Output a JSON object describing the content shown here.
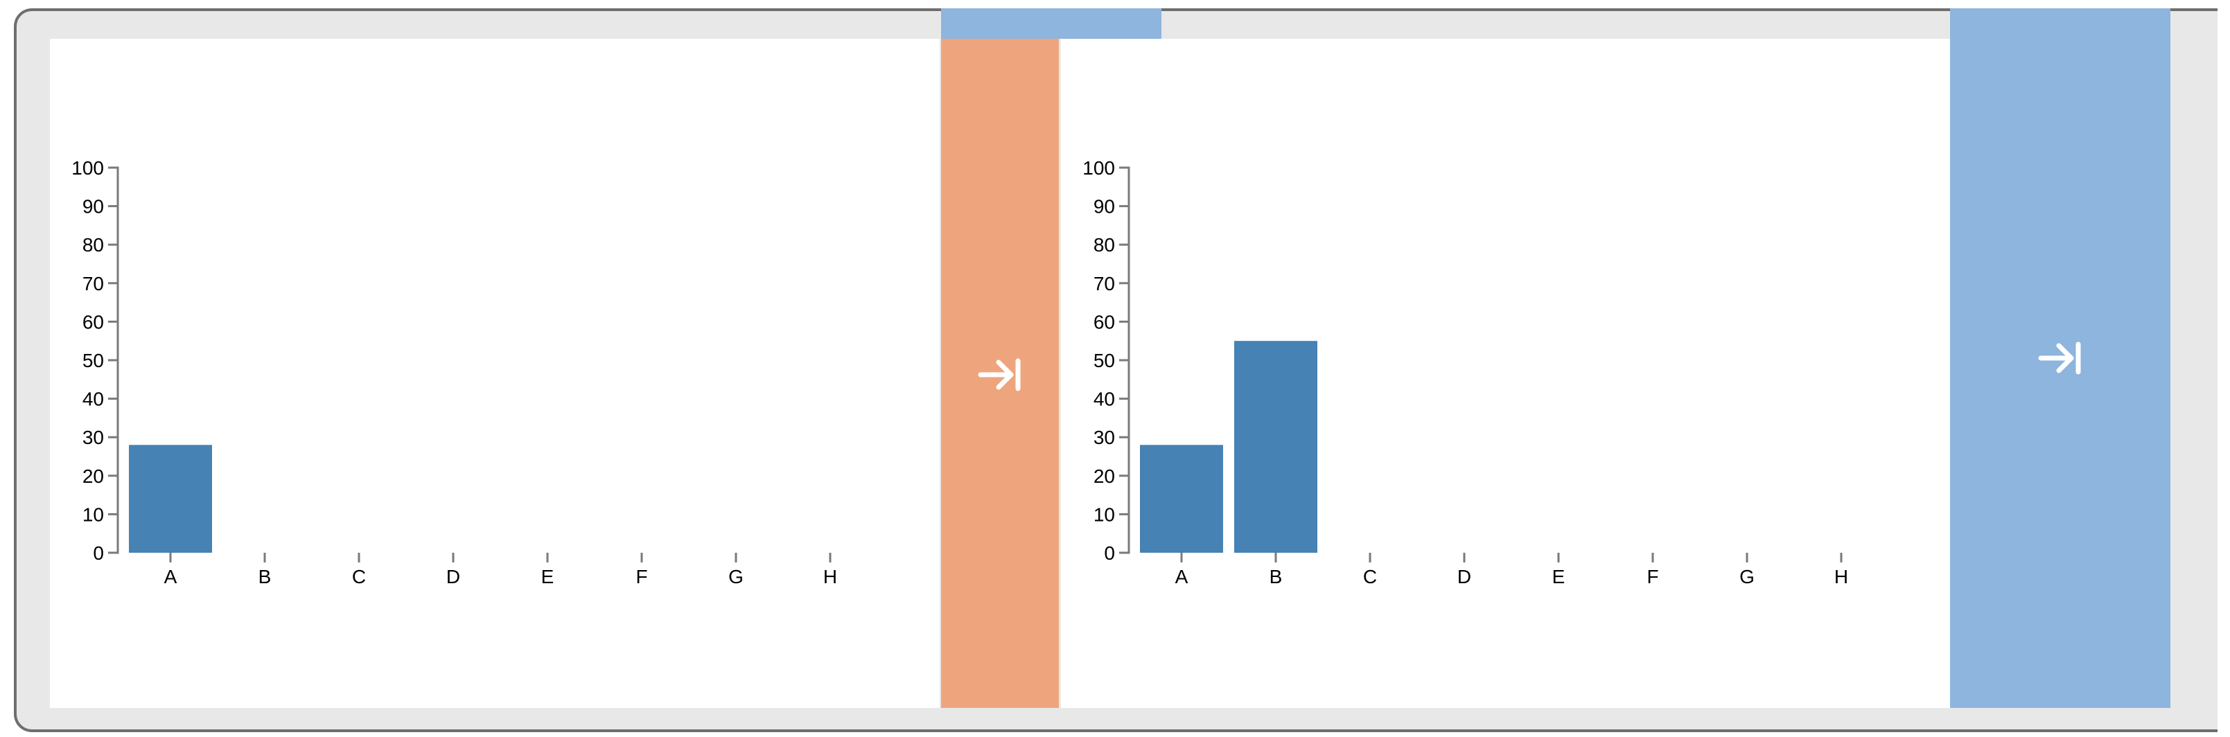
{
  "colors": {
    "bar": "#4682b4",
    "nav_orange": "#eea57d",
    "nav_blue": "#8db5dd",
    "frame": "#e8e8e8",
    "frame_border": "#6e6e6e"
  },
  "icons": {
    "nav_arrow": "arrow-right-to-bar-icon"
  },
  "chart_data": [
    {
      "type": "bar",
      "categories": [
        "A",
        "B",
        "C",
        "D",
        "E",
        "F",
        "G",
        "H"
      ],
      "values": [
        28,
        0,
        0,
        0,
        0,
        0,
        0,
        0
      ],
      "ylim": [
        0,
        100
      ],
      "yticks": [
        0,
        10,
        20,
        30,
        40,
        50,
        60,
        70,
        80,
        90,
        100
      ],
      "grid": false,
      "legend": "none"
    },
    {
      "type": "bar",
      "categories": [
        "A",
        "B",
        "C",
        "D",
        "E",
        "F",
        "G",
        "H"
      ],
      "values": [
        28,
        55,
        0,
        0,
        0,
        0,
        0,
        0
      ],
      "ylim": [
        0,
        100
      ],
      "yticks": [
        0,
        10,
        20,
        30,
        40,
        50,
        60,
        70,
        80,
        90,
        100
      ],
      "grid": false,
      "legend": "none"
    }
  ]
}
